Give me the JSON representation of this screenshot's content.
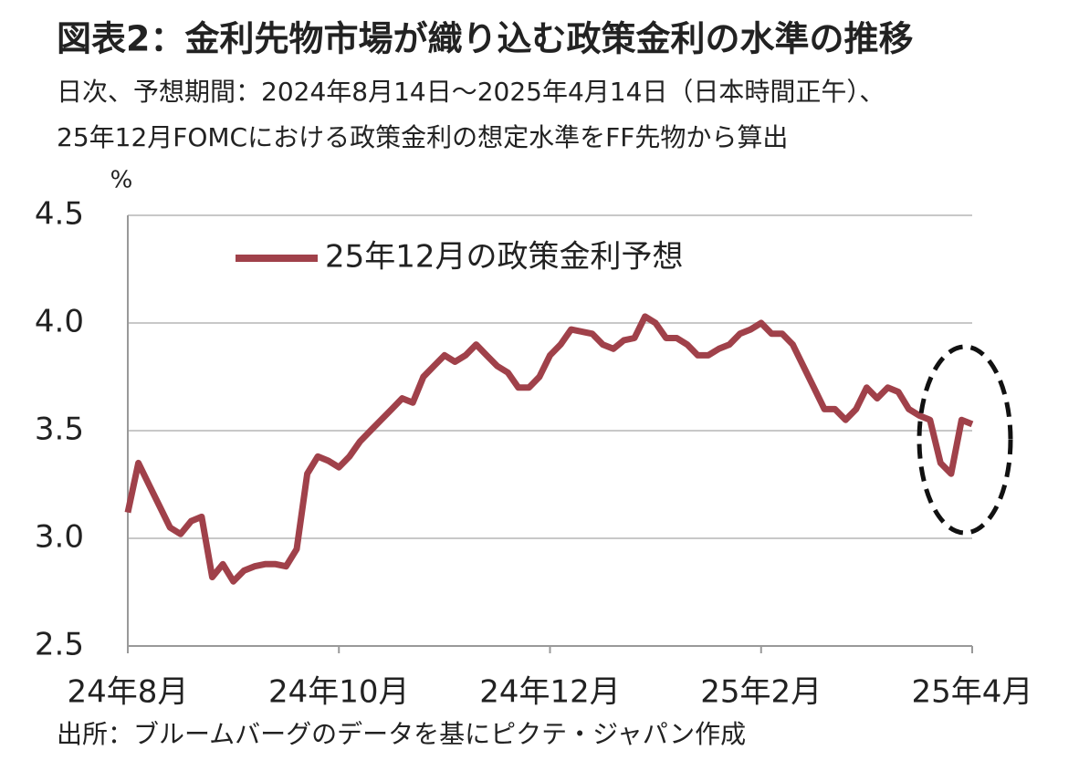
{
  "chart_data": {
    "type": "line",
    "title": "図表2：金利先物市場が織り込む政策金利の水準の推移",
    "subtitle": [
      "日次、予想期間：2024年8月14日～2025年4月14日（日本時間正午）、",
      "25年12月FOMCにおける政策金利の想定水準をFF先物から算出"
    ],
    "y_unit": "%",
    "source": "出所：ブルームバーグのデータを基にピクテ・ジャパン作成",
    "categories": [
      "24年8月",
      null,
      null,
      null,
      null,
      null,
      null,
      null,
      null,
      null,
      null,
      null,
      null,
      null,
      null,
      null,
      null,
      null,
      null,
      null,
      "24年10月",
      null,
      null,
      null,
      null,
      null,
      null,
      null,
      null,
      null,
      null,
      null,
      null,
      null,
      null,
      null,
      null,
      null,
      null,
      null,
      "24年12月",
      null,
      null,
      null,
      null,
      null,
      null,
      null,
      null,
      null,
      null,
      null,
      null,
      null,
      null,
      null,
      null,
      null,
      null,
      null,
      "25年2月",
      null,
      null,
      null,
      null,
      null,
      null,
      null,
      null,
      null,
      null,
      null,
      null,
      null,
      null,
      null,
      null,
      null,
      null,
      null,
      "25年4月"
    ],
    "series": [
      {
        "name": "25年12月の政策金利予想",
        "color": "#a0414a",
        "values": [
          3.12,
          3.35,
          3.25,
          3.15,
          3.05,
          3.02,
          3.08,
          3.1,
          2.82,
          2.88,
          2.8,
          2.85,
          2.87,
          2.88,
          2.88,
          2.87,
          2.95,
          3.3,
          3.38,
          3.36,
          3.33,
          3.38,
          3.45,
          3.5,
          3.55,
          3.6,
          3.65,
          3.63,
          3.75,
          3.8,
          3.85,
          3.82,
          3.85,
          3.9,
          3.85,
          3.8,
          3.77,
          3.7,
          3.7,
          3.75,
          3.85,
          3.9,
          3.97,
          3.96,
          3.95,
          3.9,
          3.88,
          3.92,
          3.93,
          4.03,
          4.0,
          3.93,
          3.93,
          3.9,
          3.85,
          3.85,
          3.88,
          3.9,
          3.95,
          3.97,
          4.0,
          3.95,
          3.95,
          3.9,
          3.8,
          3.7,
          3.6,
          3.6,
          3.55,
          3.6,
          3.7,
          3.65,
          3.7,
          3.68,
          3.6,
          3.57,
          3.55,
          3.35,
          3.3,
          3.55,
          3.53
        ]
      }
    ],
    "ylim": [
      2.5,
      4.5
    ],
    "yticks": [
      2.5,
      {
        "value": 3,
        "label": "3.0"
      },
      3.5,
      {
        "value": 4,
        "label": "4.0"
      },
      4.5
    ],
    "grid": true,
    "legend": "upper left"
  }
}
